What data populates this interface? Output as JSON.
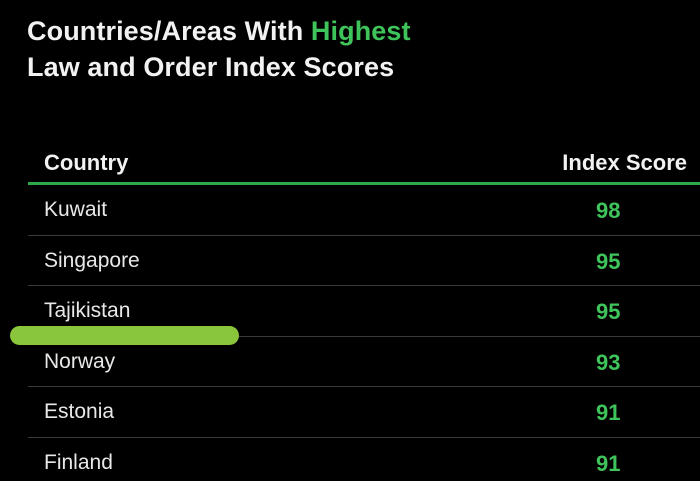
{
  "title": {
    "line1_prefix": "Countries/Areas With ",
    "line1_highlight": "Highest",
    "line2": "Law and Order Index Scores"
  },
  "colors": {
    "background": "#000000",
    "accent": "#3ec45a",
    "marker": "#8ac63c"
  },
  "chart_data": {
    "type": "table",
    "columns": [
      "Country",
      "Index Score"
    ],
    "rows": [
      {
        "country": "Kuwait",
        "score": 98
      },
      {
        "country": "Singapore",
        "score": 95
      },
      {
        "country": "Tajikistan",
        "score": 95
      },
      {
        "country": "Norway",
        "score": 93
      },
      {
        "country": "Estonia",
        "score": 91
      },
      {
        "country": "Finland",
        "score": 91
      }
    ]
  }
}
